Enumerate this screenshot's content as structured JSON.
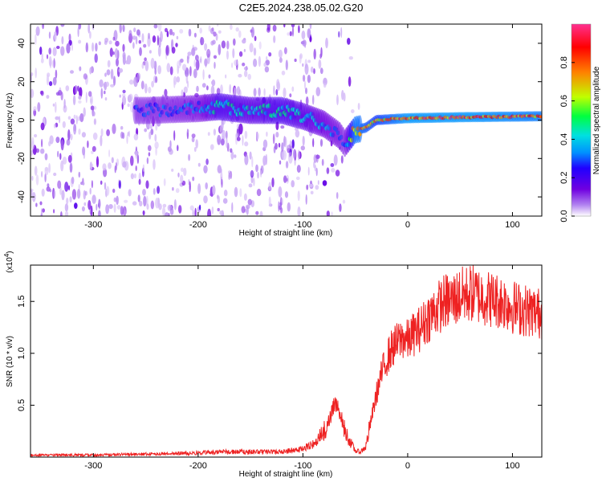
{
  "chart_data": [
    {
      "id": "spectrogram",
      "type": "heatmap",
      "title": "C2E5.2024.238.05.02.G20",
      "xlabel": "Height of straight line (km)",
      "ylabel": "Frequency (Hz)",
      "xlim": [
        -360,
        128
      ],
      "ylim": [
        -50,
        50
      ],
      "xticks": [
        -300,
        -200,
        -100,
        0,
        100
      ],
      "yticks": [
        -40,
        -20,
        0,
        20,
        40
      ],
      "colorbar": {
        "label": "Normalized spectral amplitude",
        "range": [
          0,
          1
        ],
        "ticks": [
          0.0,
          0.2,
          0.4,
          0.6,
          0.8
        ],
        "tick_labels": [
          "0.0",
          "0.2",
          "0.4",
          "0.6",
          "0.8"
        ],
        "colors": [
          "#ffffff",
          "#b080f0",
          "#7000e0",
          "#2000ff",
          "#0090ff",
          "#00e0e0",
          "#00ff40",
          "#c0ff00",
          "#ff8000",
          "#ff0000",
          "#ff3090"
        ]
      },
      "ridge": [
        {
          "x": -250,
          "f": 5,
          "a": 0.35
        },
        {
          "x": -200,
          "f": 6,
          "a": 0.4
        },
        {
          "x": -180,
          "f": 7,
          "a": 0.55
        },
        {
          "x": -150,
          "f": 5,
          "a": 0.5
        },
        {
          "x": -120,
          "f": 5,
          "a": 0.55
        },
        {
          "x": -100,
          "f": 2,
          "a": 0.5
        },
        {
          "x": -80,
          "f": -2,
          "a": 0.45
        },
        {
          "x": -65,
          "f": -8,
          "a": 0.4
        },
        {
          "x": -60,
          "f": -12,
          "a": 0.35
        },
        {
          "x": -50,
          "f": -5,
          "a": 0.85
        },
        {
          "x": -40,
          "f": -4,
          "a": 0.8
        },
        {
          "x": -30,
          "f": 0,
          "a": 0.75
        },
        {
          "x": 0,
          "f": 1,
          "a": 0.9
        },
        {
          "x": 50,
          "f": 1.5,
          "a": 0.9
        },
        {
          "x": 128,
          "f": 2,
          "a": 0.85
        }
      ]
    },
    {
      "id": "snr",
      "type": "line",
      "xlabel": "Height of straight line (km)",
      "ylabel": "SNR (10 * v/v)",
      "scale_note": "(x10",
      "scale_exponent": "4",
      "xlim": [
        -360,
        128
      ],
      "ylim": [
        0,
        1.85
      ],
      "xticks": [
        -300,
        -200,
        -100,
        0,
        100
      ],
      "yticks": [
        0.5,
        1.0,
        1.5
      ],
      "ytick_labels": [
        "0.5",
        "1.0",
        "1.5"
      ],
      "color": "#ee2222",
      "series": [
        {
          "x": [
            -360,
            -300,
            -250,
            -200,
            -180,
            -150,
            -120,
            -100,
            -90,
            -80,
            -75,
            -70,
            -65,
            -60,
            -55,
            -50,
            -45,
            -40,
            -35,
            -30,
            -25,
            -20,
            -15,
            -10,
            -5,
            0,
            5,
            10,
            15,
            20,
            25,
            30,
            35,
            40,
            50,
            60,
            70,
            80,
            90,
            100,
            110,
            120,
            128
          ],
          "y": [
            0.02,
            0.02,
            0.03,
            0.04,
            0.05,
            0.05,
            0.05,
            0.08,
            0.12,
            0.25,
            0.35,
            0.5,
            0.45,
            0.25,
            0.15,
            0.06,
            0.05,
            0.1,
            0.35,
            0.6,
            0.8,
            0.95,
            1.05,
            1.1,
            1.15,
            1.12,
            1.18,
            1.22,
            1.28,
            1.35,
            1.4,
            1.45,
            1.5,
            1.5,
            1.55,
            1.58,
            1.55,
            1.52,
            1.5,
            1.45,
            1.42,
            1.4,
            1.38
          ]
        }
      ]
    }
  ]
}
